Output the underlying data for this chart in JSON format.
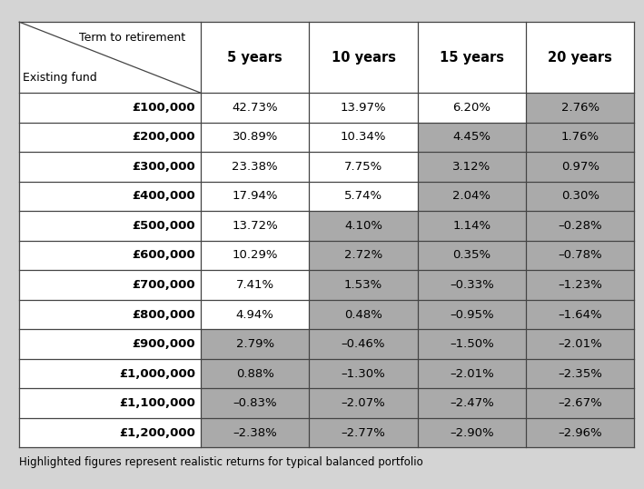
{
  "footnote": "Highlighted figures represent realistic returns for typical balanced portfolio",
  "header_top_label": "Term to retirement",
  "header_bot_label": "Existing fund",
  "col_headers": [
    "5 years",
    "10 years",
    "15 years",
    "20 years"
  ],
  "row_labels": [
    "£100,000",
    "£200,000",
    "£300,000",
    "£400,000",
    "£500,000",
    "£600,000",
    "£700,000",
    "£800,000",
    "£900,000",
    "£1,000,000",
    "£1,100,000",
    "£1,200,000"
  ],
  "data": [
    [
      "42.73%",
      "13.97%",
      "6.20%",
      "2.76%"
    ],
    [
      "30.89%",
      "10.34%",
      "4.45%",
      "1.76%"
    ],
    [
      "23.38%",
      "7.75%",
      "3.12%",
      "0.97%"
    ],
    [
      "17.94%",
      "5.74%",
      "2.04%",
      "0.30%"
    ],
    [
      "13.72%",
      "4.10%",
      "1.14%",
      "–0.28%"
    ],
    [
      "10.29%",
      "2.72%",
      "0.35%",
      "–0.78%"
    ],
    [
      "7.41%",
      "1.53%",
      "–0.33%",
      "–1.23%"
    ],
    [
      "4.94%",
      "0.48%",
      "–0.95%",
      "–1.64%"
    ],
    [
      "2.79%",
      "–0.46%",
      "–1.50%",
      "–2.01%"
    ],
    [
      "0.88%",
      "–1.30%",
      "–2.01%",
      "–2.35%"
    ],
    [
      "–0.83%",
      "–2.07%",
      "–2.47%",
      "–2.67%"
    ],
    [
      "–2.38%",
      "–2.77%",
      "–2.90%",
      "–2.96%"
    ]
  ],
  "highlight": [
    [
      false,
      false,
      false,
      true
    ],
    [
      false,
      false,
      true,
      true
    ],
    [
      false,
      false,
      true,
      true
    ],
    [
      false,
      false,
      true,
      true
    ],
    [
      false,
      true,
      true,
      true
    ],
    [
      false,
      true,
      true,
      true
    ],
    [
      false,
      true,
      true,
      true
    ],
    [
      false,
      true,
      true,
      true
    ],
    [
      true,
      true,
      true,
      true
    ],
    [
      true,
      true,
      true,
      true
    ],
    [
      true,
      true,
      true,
      true
    ],
    [
      true,
      true,
      true,
      true
    ]
  ],
  "highlight_color": "#aaaaaa",
  "white_color": "#ffffff",
  "bg_color": "#d4d4d4",
  "border_color": "#444444",
  "text_color": "#000000"
}
